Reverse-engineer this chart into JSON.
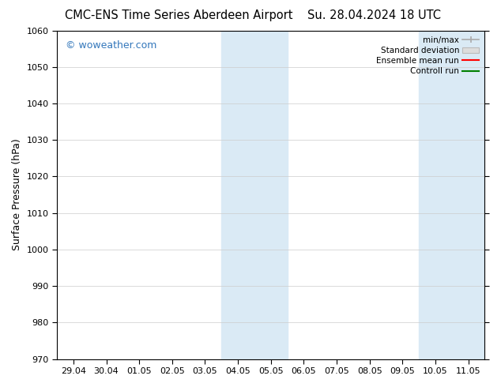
{
  "title_left": "CMC-ENS Time Series Aberdeen Airport",
  "title_right": "Su. 28.04.2024 18 UTC",
  "ylabel": "Surface Pressure (hPa)",
  "ylim": [
    970,
    1060
  ],
  "yticks": [
    970,
    980,
    990,
    1000,
    1010,
    1020,
    1030,
    1040,
    1050,
    1060
  ],
  "xtick_labels": [
    "29.04",
    "30.04",
    "01.05",
    "02.05",
    "03.05",
    "04.05",
    "05.05",
    "06.05",
    "07.05",
    "08.05",
    "09.05",
    "10.05",
    "11.05"
  ],
  "shaded_bands": [
    {
      "xstart": 5,
      "xend": 7
    },
    {
      "xstart": 11,
      "xend": 13
    }
  ],
  "band_color": "#daeaf5",
  "watermark_text": "© woweather.com",
  "watermark_color": "#3377bb",
  "legend_entries": [
    {
      "label": "min/max",
      "color": "#aaaaaa",
      "type": "minmax"
    },
    {
      "label": "Standard deviation",
      "color": "#cccccc",
      "type": "bar"
    },
    {
      "label": "Ensemble mean run",
      "color": "#ff0000",
      "type": "line"
    },
    {
      "label": "Controll run",
      "color": "#008000",
      "type": "line"
    }
  ],
  "background_color": "#ffffff",
  "grid_color": "#cccccc",
  "title_fontsize": 10.5,
  "tick_fontsize": 8,
  "ylabel_fontsize": 9,
  "watermark_fontsize": 9
}
